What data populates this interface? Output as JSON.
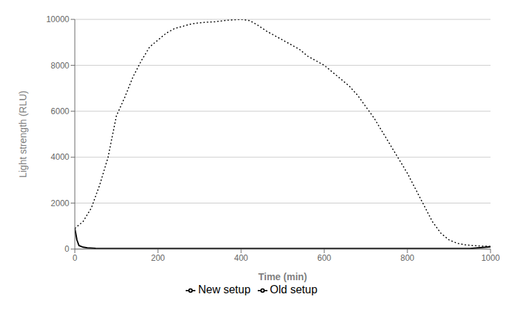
{
  "chart_data": {
    "type": "line",
    "xlabel": "Time (min)",
    "ylabel": "Light strength (RLU)",
    "xlim": [
      0,
      1000
    ],
    "ylim": [
      0,
      10000
    ],
    "xticks": [
      0,
      200,
      400,
      600,
      800,
      1000
    ],
    "yticks": [
      0,
      2000,
      4000,
      6000,
      8000,
      10000
    ],
    "grid": true,
    "legend": "bottom",
    "series": [
      {
        "name": "Old setup",
        "color": "#000000",
        "line_style": "solid",
        "x": [
          0,
          5,
          10,
          20,
          30,
          50,
          100,
          200,
          300,
          400,
          500,
          600,
          700,
          800,
          850,
          900,
          950,
          1000
        ],
        "values": [
          900,
          400,
          150,
          80,
          50,
          30,
          20,
          20,
          20,
          20,
          20,
          20,
          20,
          20,
          20,
          20,
          20,
          100
        ]
      },
      {
        "name": "New setup",
        "color": "#000000",
        "line_style": "dotted",
        "x": [
          0,
          20,
          40,
          60,
          80,
          100,
          120,
          140,
          160,
          180,
          200,
          220,
          240,
          260,
          280,
          300,
          320,
          340,
          360,
          380,
          400,
          420,
          440,
          460,
          480,
          500,
          520,
          540,
          560,
          580,
          600,
          620,
          640,
          660,
          680,
          700,
          720,
          740,
          760,
          780,
          800,
          820,
          840,
          860,
          880,
          900,
          920,
          940,
          960,
          980,
          1000
        ],
        "values": [
          900,
          1200,
          1800,
          2800,
          4000,
          5800,
          6600,
          7500,
          8200,
          8800,
          9100,
          9400,
          9600,
          9700,
          9800,
          9850,
          9880,
          9900,
          9950,
          9980,
          10000,
          9950,
          9750,
          9500,
          9300,
          9100,
          8900,
          8700,
          8400,
          8200,
          8000,
          7700,
          7400,
          7100,
          6700,
          6200,
          5700,
          5100,
          4500,
          3900,
          3300,
          2600,
          1900,
          1200,
          700,
          400,
          250,
          180,
          150,
          130,
          120
        ]
      }
    ]
  }
}
